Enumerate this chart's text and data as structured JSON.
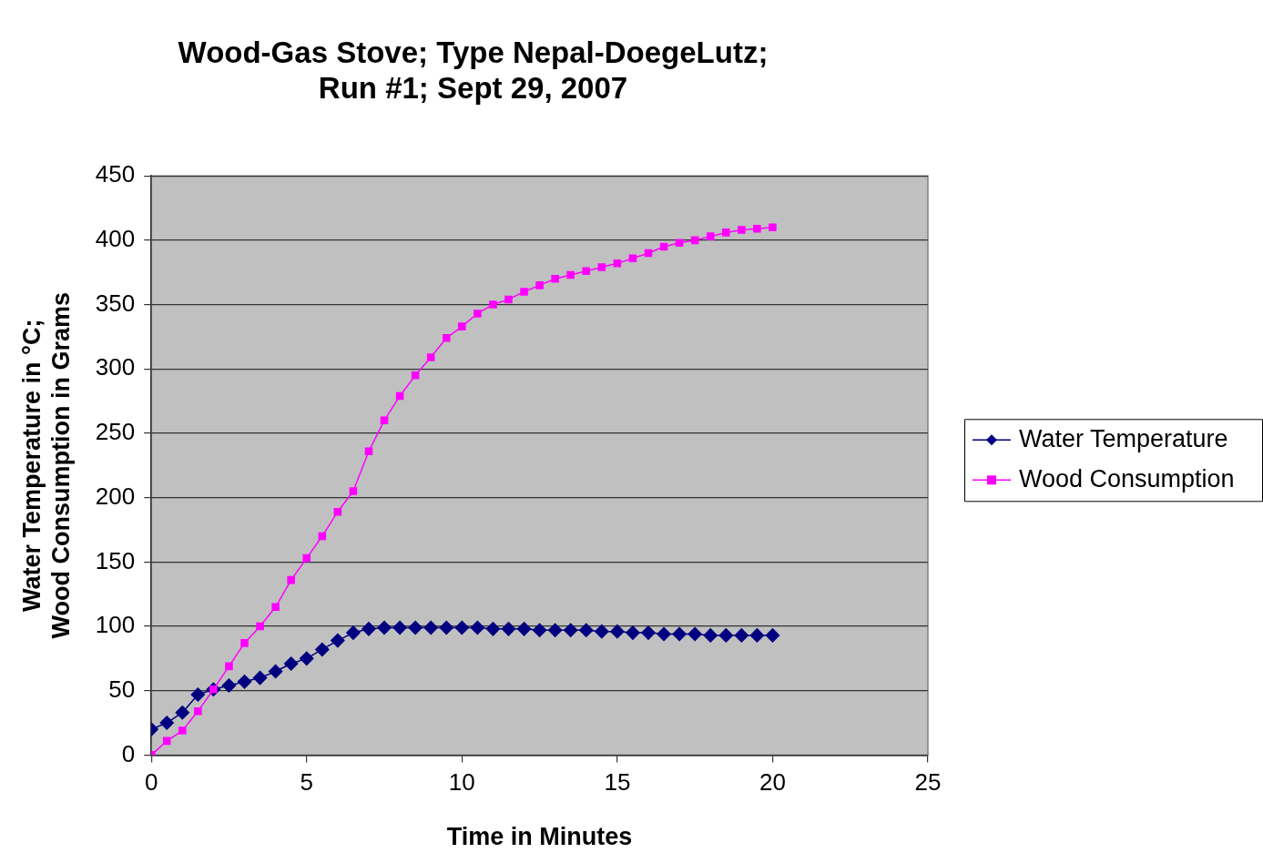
{
  "chart_data": {
    "type": "line",
    "title": "Wood-Gas Stove; Type Nepal-DoegeLutz;\nRun #1; Sept 29, 2007",
    "xlabel": "Time in Minutes",
    "ylabel": "Water Temperature in °C;\nWood Consumption in Grams",
    "x": [
      0,
      0.5,
      1,
      1.5,
      2,
      2.5,
      3,
      3.5,
      4,
      4.5,
      5,
      5.5,
      6,
      6.5,
      7,
      7.5,
      8,
      8.5,
      9,
      9.5,
      10,
      10.5,
      11,
      11.5,
      12,
      12.5,
      13,
      13.5,
      14,
      14.5,
      15,
      15.5,
      16,
      16.5,
      17,
      17.5,
      18,
      18.5,
      19,
      19.5,
      20
    ],
    "series": [
      {
        "name": "Water Temperature",
        "color": "#000080",
        "marker": "diamond",
        "values": [
          20,
          25,
          33,
          47,
          51,
          54,
          57,
          60,
          65,
          71,
          75,
          82,
          89,
          95,
          98,
          99,
          99,
          99,
          99,
          99,
          99,
          99,
          98,
          98,
          98,
          97,
          97,
          97,
          97,
          96,
          96,
          95,
          95,
          94,
          94,
          94,
          93,
          93,
          93,
          93,
          93
        ]
      },
      {
        "name": "Wood Consumption",
        "color": "#ff00ff",
        "marker": "square",
        "values": [
          0,
          11,
          19,
          34,
          51,
          69,
          87,
          100,
          115,
          136,
          153,
          170,
          189,
          205,
          236,
          260,
          279,
          295,
          309,
          324,
          333,
          343,
          350,
          354,
          360,
          365,
          370,
          373,
          376,
          379,
          382,
          386,
          390,
          395,
          398,
          400,
          403,
          406,
          408,
          409,
          410
        ]
      }
    ],
    "xlim": [
      0,
      25
    ],
    "xticks": [
      0,
      5,
      10,
      15,
      20,
      25
    ],
    "ylim": [
      0,
      450
    ],
    "yticks": [
      0,
      50,
      100,
      150,
      200,
      250,
      300,
      350,
      400,
      450
    ],
    "grid": "y",
    "legend": "right",
    "line_style": "solid"
  }
}
